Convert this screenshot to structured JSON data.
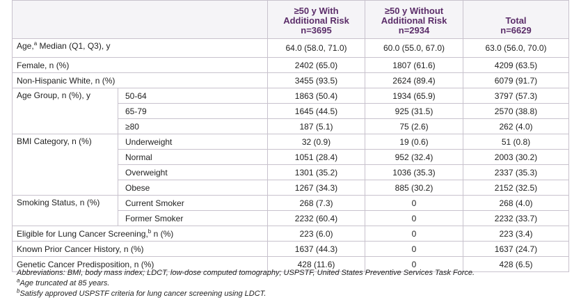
{
  "header": {
    "col1": [
      "≥50 y With",
      "Additional Risk",
      "n=3695"
    ],
    "col2": [
      "≥50 y Without",
      "Additional Risk",
      "n=2934"
    ],
    "col3": [
      "Total",
      "n=6629"
    ]
  },
  "rows": {
    "age_median": {
      "label": "Age,",
      "sup": "a",
      "label_rest": " Median (Q1, Q3), y",
      "v1": "64.0 (58.0, 71.0)",
      "v2": "60.0 (55.0, 67.0)",
      "v3": "63.0 (56.0, 70.0)"
    },
    "female": {
      "label": "Female, n (%)",
      "v1": "2402 (65.0)",
      "v2": "1807 (61.6)",
      "v3": "4209 (63.5)"
    },
    "nhw": {
      "label": "Non-Hispanic White, n (%)",
      "v1": "3455 (93.5)",
      "v2": "2624 (89.4)",
      "v3": "6079 (91.7)"
    },
    "age_group": {
      "label": "Age Group, n (%), y",
      "items": [
        {
          "sub": "50-64",
          "v1": "1863 (50.4)",
          "v2": "1934 (65.9)",
          "v3": "3797 (57.3)"
        },
        {
          "sub": "65-79",
          "v1": "1645 (44.5)",
          "v2": "925 (31.5)",
          "v3": "2570 (38.8)"
        },
        {
          "sub": "≥80",
          "v1": "187 (5.1)",
          "v2": "75 (2.6)",
          "v3": "262 (4.0)"
        }
      ]
    },
    "bmi": {
      "label": "BMI Category, n (%)",
      "items": [
        {
          "sub": "Underweight",
          "v1": "32 (0.9)",
          "v2": "19 (0.6)",
          "v3": "51 (0.8)"
        },
        {
          "sub": "Normal",
          "v1": "1051 (28.4)",
          "v2": "952 (32.4)",
          "v3": "2003 (30.2)"
        },
        {
          "sub": "Overweight",
          "v1": "1301 (35.2)",
          "v2": "1036 (35.3)",
          "v3": "2337 (35.3)"
        },
        {
          "sub": "Obese",
          "v1": "1267 (34.3)",
          "v2": "885 (30.2)",
          "v3": "2152 (32.5)"
        }
      ]
    },
    "smoking": {
      "label": "Smoking Status, n (%)",
      "items": [
        {
          "sub": "Current Smoker",
          "v1": "268 (7.3)",
          "v2": "0",
          "v3": "268 (4.0)"
        },
        {
          "sub": "Former Smoker",
          "v1": "2232 (60.4)",
          "v2": "0",
          "v3": "2232 (33.7)"
        }
      ]
    },
    "eligible": {
      "label": "Eligible for Lung Cancer Screening,",
      "sup": "b",
      "label_rest": " n (%)",
      "v1": "223 (6.0)",
      "v2": "0",
      "v3": "223 (3.4)"
    },
    "prior_cancer": {
      "label": "Known Prior Cancer History, n (%)",
      "v1": "1637 (44.3)",
      "v2": "0",
      "v3": "1637 (24.7)"
    },
    "genetic": {
      "label": "Genetic Cancer Predisposition, n (%)",
      "v1": "428 (11.6)",
      "v2": "0",
      "v3": "428 (6.5)"
    }
  },
  "footnotes": {
    "abbrev": "Abbreviations: BMI, body mass index; LDCT, low-dose computed tomography; USPSTF, United States Preventive Services Task Force.",
    "a_sup": "a",
    "a_text": "Age truncated at 85 years.",
    "b_sup": "b",
    "b_text": "Satisfy approved USPSTF criteria for lung cancer screening using LDCT."
  }
}
